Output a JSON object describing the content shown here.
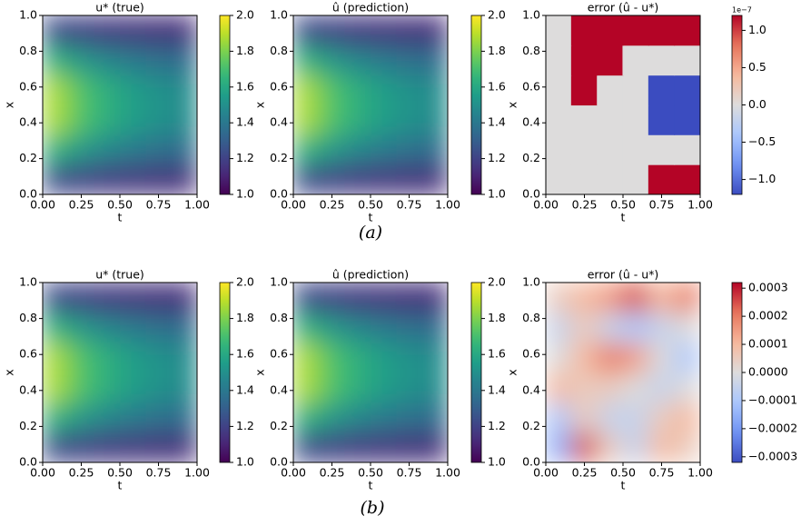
{
  "chart_data": [
    {
      "type": "heatmap",
      "title": "u* (true)",
      "xlabel": "t",
      "ylabel": "x",
      "colormap": "viridis",
      "smooth": true,
      "x": [
        0.083,
        0.25,
        0.417,
        0.583,
        0.75,
        0.917
      ],
      "y": [
        0.083,
        0.25,
        0.417,
        0.583,
        0.75,
        0.917
      ],
      "z": [
        [
          1.23,
          1.19,
          1.17,
          1.15,
          1.14,
          1.13
        ],
        [
          1.64,
          1.53,
          1.46,
          1.41,
          1.37,
          1.35
        ],
        [
          1.87,
          1.72,
          1.63,
          1.56,
          1.51,
          1.48
        ],
        [
          1.87,
          1.72,
          1.63,
          1.56,
          1.51,
          1.48
        ],
        [
          1.64,
          1.53,
          1.46,
          1.41,
          1.37,
          1.35
        ],
        [
          1.23,
          1.19,
          1.17,
          1.15,
          1.14,
          1.13
        ]
      ],
      "xlim": [
        0,
        1
      ],
      "ylim": [
        0,
        1
      ],
      "xticks": [
        {
          "value": 0,
          "label": "0.00"
        },
        {
          "value": 0.25,
          "label": "0.25"
        },
        {
          "value": 0.5,
          "label": "0.50"
        },
        {
          "value": 0.75,
          "label": "0.75"
        },
        {
          "value": 1,
          "label": "1.00"
        }
      ],
      "yticks": [
        {
          "value": 0,
          "label": "0.0"
        },
        0.2,
        0.4,
        0.6,
        0.8,
        {
          "value": 1,
          "label": "1.0"
        }
      ],
      "clim": [
        1,
        2
      ],
      "cticks": [
        {
          "value": 1,
          "label": "1.0"
        },
        1.2,
        1.4,
        1.6,
        1.8,
        {
          "value": 2,
          "label": "2.0"
        }
      ]
    },
    {
      "type": "heatmap",
      "title": "û (prediction)",
      "xlabel": "t",
      "ylabel": "x",
      "colormap": "viridis",
      "smooth": true,
      "x": [
        0.083,
        0.25,
        0.417,
        0.583,
        0.75,
        0.917
      ],
      "y": [
        0.083,
        0.25,
        0.417,
        0.583,
        0.75,
        0.917
      ],
      "z": [
        [
          1.23,
          1.19,
          1.17,
          1.15,
          1.14,
          1.13
        ],
        [
          1.64,
          1.53,
          1.46,
          1.41,
          1.37,
          1.35
        ],
        [
          1.87,
          1.72,
          1.63,
          1.56,
          1.51,
          1.48
        ],
        [
          1.87,
          1.72,
          1.63,
          1.56,
          1.51,
          1.48
        ],
        [
          1.64,
          1.53,
          1.46,
          1.41,
          1.37,
          1.35
        ],
        [
          1.23,
          1.19,
          1.17,
          1.15,
          1.14,
          1.13
        ]
      ],
      "xlim": [
        0,
        1
      ],
      "ylim": [
        0,
        1
      ],
      "xticks": [
        {
          "value": 0,
          "label": "0.00"
        },
        {
          "value": 0.25,
          "label": "0.25"
        },
        {
          "value": 0.5,
          "label": "0.50"
        },
        {
          "value": 0.75,
          "label": "0.75"
        },
        {
          "value": 1,
          "label": "1.00"
        }
      ],
      "yticks": [
        {
          "value": 0,
          "label": "0.0"
        },
        0.2,
        0.4,
        0.6,
        0.8,
        {
          "value": 1,
          "label": "1.0"
        }
      ],
      "clim": [
        1,
        2
      ],
      "cticks": [
        {
          "value": 1,
          "label": "1.0"
        },
        1.2,
        1.4,
        1.6,
        1.8,
        {
          "value": 2,
          "label": "2.0"
        }
      ]
    },
    {
      "type": "heatmap",
      "title": "error (û - u*)",
      "xlabel": "t",
      "ylabel": "x",
      "colormap": "coolwarm",
      "smooth": false,
      "x": [
        0.083,
        0.25,
        0.417,
        0.583,
        0.75,
        0.917
      ],
      "y": [
        0.083,
        0.25,
        0.417,
        0.583,
        0.75,
        0.917
      ],
      "z": [
        [
          0,
          0,
          0,
          0,
          1.2,
          1.2
        ],
        [
          0,
          0,
          0,
          0,
          0,
          0
        ],
        [
          0,
          0,
          0,
          0,
          -1.2,
          -1.2
        ],
        [
          0,
          1.2,
          0,
          0,
          -1.2,
          -1.2
        ],
        [
          0,
          1.2,
          1.2,
          0,
          0,
          0
        ],
        [
          0,
          1.2,
          1.2,
          1.2,
          1.2,
          1.2
        ]
      ],
      "xlim": [
        0,
        1
      ],
      "ylim": [
        0,
        1
      ],
      "xticks": [
        {
          "value": 0,
          "label": "0.00"
        },
        {
          "value": 0.25,
          "label": "0.25"
        },
        {
          "value": 0.5,
          "label": "0.50"
        },
        {
          "value": 0.75,
          "label": "0.75"
        },
        {
          "value": 1,
          "label": "1.00"
        }
      ],
      "yticks": [
        {
          "value": 0,
          "label": "0.0"
        },
        0.2,
        0.4,
        0.6,
        0.8,
        {
          "value": 1,
          "label": "1.0"
        }
      ],
      "clim": [
        -1.2,
        1.2
      ],
      "cticks": [
        {
          "value": -1,
          "label": "−1.0"
        },
        {
          "value": -0.5,
          "label": "−0.5"
        },
        {
          "value": 0,
          "label": "0.0"
        },
        0.5,
        {
          "value": 1,
          "label": "1.0"
        }
      ],
      "offset_label": "1e−7"
    },
    {
      "type": "heatmap",
      "title": "u* (true)",
      "xlabel": "t",
      "ylabel": "x",
      "colormap": "viridis",
      "smooth": true,
      "x": [
        0.083,
        0.25,
        0.417,
        0.583,
        0.75,
        0.917
      ],
      "y": [
        0.083,
        0.25,
        0.417,
        0.583,
        0.75,
        0.917
      ],
      "z": [
        [
          1.23,
          1.19,
          1.17,
          1.15,
          1.14,
          1.13
        ],
        [
          1.64,
          1.53,
          1.46,
          1.41,
          1.37,
          1.35
        ],
        [
          1.87,
          1.72,
          1.63,
          1.56,
          1.51,
          1.48
        ],
        [
          1.87,
          1.72,
          1.63,
          1.56,
          1.51,
          1.48
        ],
        [
          1.64,
          1.53,
          1.46,
          1.41,
          1.37,
          1.35
        ],
        [
          1.23,
          1.19,
          1.17,
          1.15,
          1.14,
          1.13
        ]
      ],
      "xlim": [
        0,
        1
      ],
      "ylim": [
        0,
        1
      ],
      "xticks": [
        {
          "value": 0,
          "label": "0.00"
        },
        {
          "value": 0.25,
          "label": "0.25"
        },
        {
          "value": 0.5,
          "label": "0.50"
        },
        {
          "value": 0.75,
          "label": "0.75"
        },
        {
          "value": 1,
          "label": "1.00"
        }
      ],
      "yticks": [
        {
          "value": 0,
          "label": "0.0"
        },
        0.2,
        0.4,
        0.6,
        0.8,
        {
          "value": 1,
          "label": "1.0"
        }
      ],
      "clim": [
        1,
        2
      ],
      "cticks": [
        {
          "value": 1,
          "label": "1.0"
        },
        1.2,
        1.4,
        1.6,
        1.8,
        {
          "value": 2,
          "label": "2.0"
        }
      ]
    },
    {
      "type": "heatmap",
      "title": "û (prediction)",
      "xlabel": "t",
      "ylabel": "x",
      "colormap": "viridis",
      "smooth": true,
      "x": [
        0.083,
        0.25,
        0.417,
        0.583,
        0.75,
        0.917
      ],
      "y": [
        0.083,
        0.25,
        0.417,
        0.583,
        0.75,
        0.917
      ],
      "z": [
        [
          1.23,
          1.19,
          1.17,
          1.15,
          1.14,
          1.13
        ],
        [
          1.64,
          1.53,
          1.46,
          1.41,
          1.37,
          1.35
        ],
        [
          1.87,
          1.72,
          1.63,
          1.56,
          1.51,
          1.48
        ],
        [
          1.87,
          1.72,
          1.63,
          1.56,
          1.51,
          1.48
        ],
        [
          1.64,
          1.53,
          1.46,
          1.41,
          1.37,
          1.35
        ],
        [
          1.23,
          1.19,
          1.17,
          1.15,
          1.14,
          1.13
        ]
      ],
      "xlim": [
        0,
        1
      ],
      "ylim": [
        0,
        1
      ],
      "xticks": [
        {
          "value": 0,
          "label": "0.00"
        },
        {
          "value": 0.25,
          "label": "0.25"
        },
        {
          "value": 0.5,
          "label": "0.50"
        },
        {
          "value": 0.75,
          "label": "0.75"
        },
        {
          "value": 1,
          "label": "1.00"
        }
      ],
      "yticks": [
        {
          "value": 0,
          "label": "0.0"
        },
        0.2,
        0.4,
        0.6,
        0.8,
        {
          "value": 1,
          "label": "1.0"
        }
      ],
      "clim": [
        1,
        2
      ],
      "cticks": [
        {
          "value": 1,
          "label": "1.0"
        },
        1.2,
        1.4,
        1.6,
        1.8,
        {
          "value": 2,
          "label": "2.0"
        }
      ]
    },
    {
      "type": "heatmap",
      "title": "error (û - u*)",
      "xlabel": "t",
      "ylabel": "x",
      "colormap": "coolwarm",
      "smooth": true,
      "x": [
        0.083,
        0.25,
        0.417,
        0.583,
        0.75,
        0.917
      ],
      "y": [
        0.083,
        0.25,
        0.417,
        0.583,
        0.75,
        0.917
      ],
      "z": [
        [
          -0.00015,
          0.00025,
          5e-05,
          -5e-05,
          0.0001,
          5e-05
        ],
        [
          -0.0001,
          5e-05,
          -5e-05,
          -5e-05,
          5e-05,
          0.0001
        ],
        [
          0.0001,
          5e-05,
          5e-05,
          0,
          -5e-05,
          0
        ],
        [
          0,
          0.0001,
          0.0002,
          0.00015,
          0,
          -0.0001
        ],
        [
          -5e-05,
          5e-05,
          -5e-05,
          -0.0001,
          -5e-05,
          0
        ],
        [
          5e-05,
          0.0001,
          0.00015,
          0.00025,
          0.0001,
          0.0002
        ]
      ],
      "xlim": [
        0,
        1
      ],
      "ylim": [
        0,
        1
      ],
      "xticks": [
        {
          "value": 0,
          "label": "0.00"
        },
        {
          "value": 0.25,
          "label": "0.25"
        },
        {
          "value": 0.5,
          "label": "0.50"
        },
        {
          "value": 0.75,
          "label": "0.75"
        },
        {
          "value": 1,
          "label": "1.00"
        }
      ],
      "yticks": [
        {
          "value": 0,
          "label": "0.0"
        },
        0.2,
        0.4,
        0.6,
        0.8,
        {
          "value": 1,
          "label": "1.0"
        }
      ],
      "clim": [
        -0.00032,
        0.00032
      ],
      "cticks": [
        {
          "value": -0.0003,
          "label": "−0.0003"
        },
        {
          "value": -0.0002,
          "label": "−0.0002"
        },
        {
          "value": -0.0001,
          "label": "−0.0001"
        },
        {
          "value": 0,
          "label": "0.0000"
        },
        {
          "value": 0.0001,
          "label": "0.0001"
        },
        {
          "value": 0.0002,
          "label": "0.0002"
        },
        {
          "value": 0.0003,
          "label": "0.0003"
        }
      ]
    }
  ],
  "captions": [
    "(a)",
    "(b)"
  ]
}
